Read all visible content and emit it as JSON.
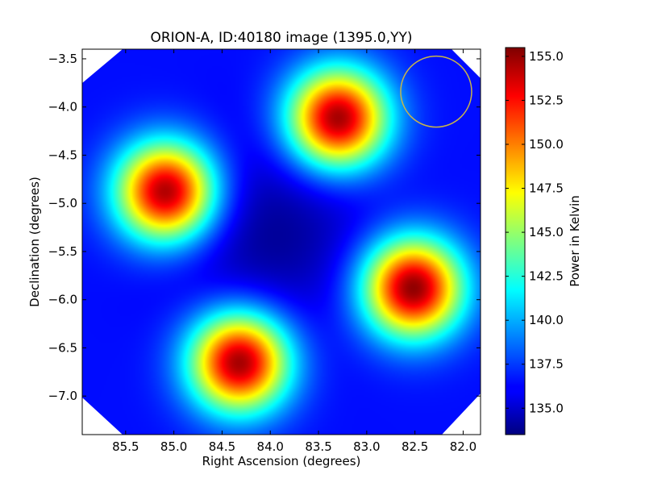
{
  "chart_data": {
    "type": "heatmap",
    "title": "ORION-A, ID:40180 image (1395.0,YY)",
    "xlabel": "Right Ascension (degrees)",
    "ylabel": "Declination (degrees)",
    "colorbar_label": "Power in Kelvin",
    "colormap": "jet",
    "xlim": [
      85.95,
      81.82
    ],
    "ylim": [
      -7.4,
      -3.4
    ],
    "x_ticks": [
      85.5,
      85.0,
      84.5,
      84.0,
      83.5,
      83.0,
      82.5,
      82.0
    ],
    "x_tick_labels": [
      "85.5",
      "85.0",
      "84.5",
      "84.0",
      "83.5",
      "83.0",
      "82.5",
      "82.0"
    ],
    "y_ticks": [
      -3.5,
      -4.0,
      -4.5,
      -5.0,
      -5.5,
      -6.0,
      -6.5,
      -7.0
    ],
    "y_tick_labels": [
      "−3.5",
      "−4.0",
      "−4.5",
      "−5.0",
      "−5.5",
      "−6.0",
      "−6.5",
      "−7.0"
    ],
    "colorbar_range": [
      133.5,
      155.5
    ],
    "colorbar_ticks": [
      135.0,
      137.5,
      140.0,
      142.5,
      145.0,
      147.5,
      150.0,
      152.5,
      155.0
    ],
    "colorbar_tick_labels": [
      "135.0",
      "137.5",
      "140.0",
      "142.5",
      "145.0",
      "147.5",
      "150.0",
      "152.5",
      "155.0"
    ],
    "background_level": 136.5,
    "central_minimum": {
      "ra": 84.0,
      "dec": -5.3,
      "value": 134.0
    },
    "peaks": [
      {
        "ra": 83.3,
        "dec": -4.12,
        "value": 155.0
      },
      {
        "ra": 85.08,
        "dec": -4.88,
        "value": 155.0
      },
      {
        "ra": 82.52,
        "dec": -5.88,
        "value": 155.3
      },
      {
        "ra": 84.32,
        "dec": -6.65,
        "value": 155.0
      }
    ],
    "beam_circle": {
      "ra": 82.28,
      "dec": -3.84,
      "color": "#c8b44a"
    }
  }
}
